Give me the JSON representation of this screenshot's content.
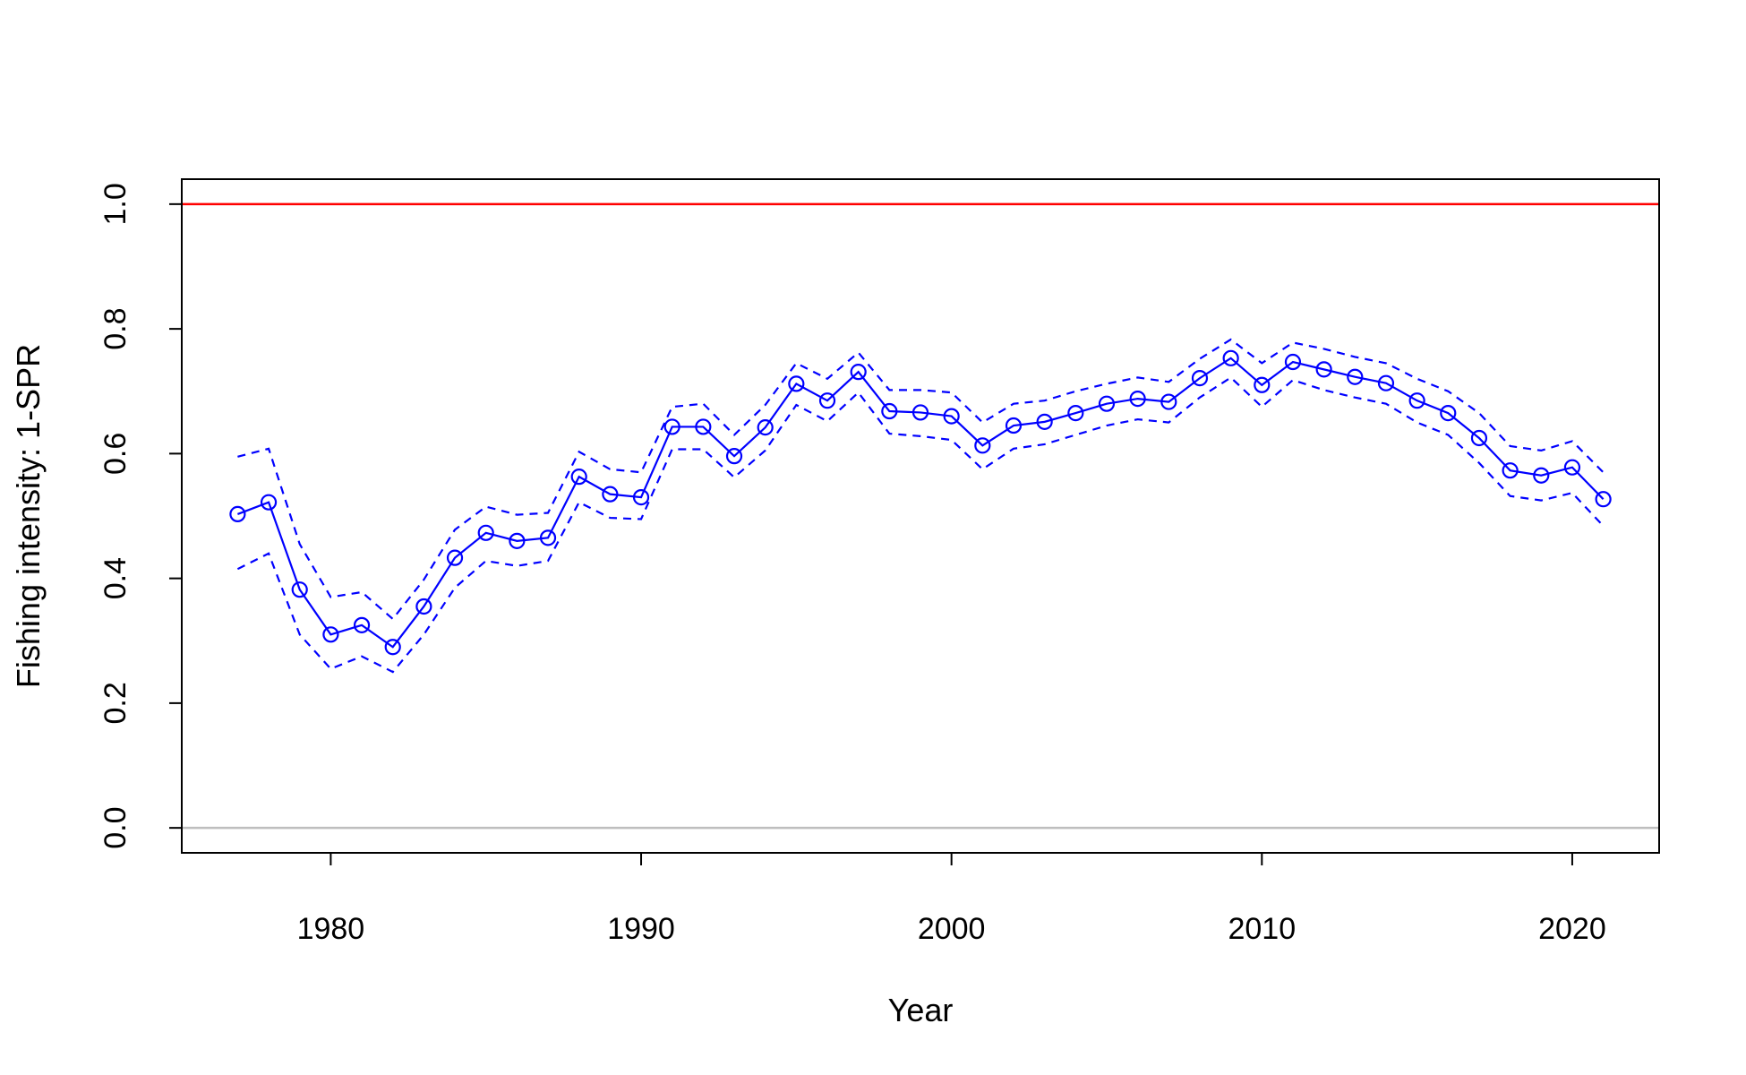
{
  "chart_data": {
    "type": "line",
    "title": "",
    "xlabel": "Year",
    "ylabel": "Fishing intensity: 1-SPR",
    "xlim": [
      1975.2,
      2022.8
    ],
    "ylim": [
      -0.04,
      1.04
    ],
    "x_ticks": [
      1980,
      1990,
      2000,
      2010,
      2020
    ],
    "y_ticks": [
      "0.0",
      "0.2",
      "0.4",
      "0.6",
      "0.8",
      "1.0"
    ],
    "grid": false,
    "reference_lines": [
      {
        "y": 1.0,
        "color": "#ff0000"
      },
      {
        "y": 0.0,
        "color": "#bebebe"
      }
    ],
    "x": [
      1977,
      1978,
      1979,
      1980,
      1981,
      1982,
      1983,
      1984,
      1985,
      1986,
      1987,
      1988,
      1989,
      1990,
      1991,
      1992,
      1993,
      1994,
      1995,
      1996,
      1997,
      1998,
      1999,
      2000,
      2001,
      2002,
      2003,
      2004,
      2005,
      2006,
      2007,
      2008,
      2009,
      2010,
      2011,
      2012,
      2013,
      2014,
      2015,
      2016,
      2017,
      2018,
      2019,
      2020,
      2021
    ],
    "series": [
      {
        "role": "estimate",
        "color": "#0000ff",
        "style": "solid-with-circles",
        "values": [
          0.503,
          0.522,
          0.382,
          0.31,
          0.325,
          0.29,
          0.355,
          0.433,
          0.473,
          0.46,
          0.465,
          0.563,
          0.535,
          0.53,
          0.643,
          0.643,
          0.596,
          0.642,
          0.712,
          0.685,
          0.731,
          0.668,
          0.666,
          0.66,
          0.613,
          0.645,
          0.651,
          0.665,
          0.68,
          0.688,
          0.683,
          0.721,
          0.753,
          0.71,
          0.747,
          0.735,
          0.723,
          0.713,
          0.685,
          0.665,
          0.625,
          0.573,
          0.565,
          0.578,
          0.527
        ]
      },
      {
        "role": "upper",
        "color": "#0000ff",
        "style": "dashed",
        "values": [
          0.595,
          0.608,
          0.455,
          0.37,
          0.378,
          0.335,
          0.398,
          0.478,
          0.515,
          0.502,
          0.505,
          0.603,
          0.575,
          0.57,
          0.675,
          0.68,
          0.63,
          0.678,
          0.745,
          0.72,
          0.762,
          0.702,
          0.702,
          0.698,
          0.65,
          0.68,
          0.685,
          0.7,
          0.712,
          0.722,
          0.715,
          0.752,
          0.783,
          0.745,
          0.778,
          0.768,
          0.755,
          0.745,
          0.72,
          0.7,
          0.665,
          0.612,
          0.605,
          0.62,
          0.57
        ]
      },
      {
        "role": "lower",
        "color": "#0000ff",
        "style": "dashed",
        "values": [
          0.415,
          0.44,
          0.31,
          0.255,
          0.275,
          0.25,
          0.31,
          0.385,
          0.428,
          0.42,
          0.428,
          0.522,
          0.497,
          0.495,
          0.607,
          0.607,
          0.562,
          0.605,
          0.678,
          0.652,
          0.698,
          0.632,
          0.628,
          0.622,
          0.575,
          0.608,
          0.615,
          0.63,
          0.645,
          0.655,
          0.65,
          0.69,
          0.722,
          0.675,
          0.718,
          0.702,
          0.69,
          0.68,
          0.65,
          0.63,
          0.585,
          0.532,
          0.525,
          0.537,
          0.484
        ]
      }
    ]
  }
}
